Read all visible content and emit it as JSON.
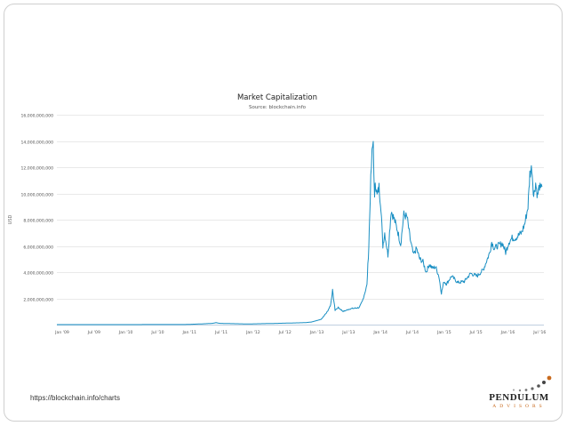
{
  "colors": {
    "line": "#1a8fc3",
    "grid": "#e2e2e2",
    "axis": "#bfcfe0",
    "accent": "#c86a1d"
  },
  "footer": {
    "source_url": "https://blockchain.info/charts",
    "brand_name": "PENDULUM",
    "brand_sub": "ADVISORS",
    "brand_icon": "pendulum-dots-logo"
  },
  "chart_data": {
    "type": "line",
    "title": "Market Capitalization",
    "subtitle": "Source: blockchain.info",
    "xlabel": "",
    "ylabel": "USD",
    "ylim": [
      0,
      16000000000
    ],
    "grid": true,
    "y_ticks": [
      {
        "value": 2000000000,
        "label": "2,000,000,000"
      },
      {
        "value": 4000000000,
        "label": "4,000,000,000"
      },
      {
        "value": 6000000000,
        "label": "6,000,000,000"
      },
      {
        "value": 8000000000,
        "label": "8,000,000,000"
      },
      {
        "value": 10000000000,
        "label": "10,000,000,000"
      },
      {
        "value": 12000000000,
        "label": "12,000,000,000"
      },
      {
        "value": 14000000000,
        "label": "14,000,000,000"
      },
      {
        "value": 16000000000,
        "label": "16,000,000,000"
      }
    ],
    "x_ticks": [
      {
        "value": 0,
        "label": "Jan '09"
      },
      {
        "value": 0.5,
        "label": "Jul '09"
      },
      {
        "value": 1,
        "label": "Jan '10"
      },
      {
        "value": 1.5,
        "label": "Jul '10"
      },
      {
        "value": 2,
        "label": "Jan '11"
      },
      {
        "value": 2.5,
        "label": "Jul '11"
      },
      {
        "value": 3,
        "label": "Jan '12"
      },
      {
        "value": 3.5,
        "label": "Jul '12"
      },
      {
        "value": 4,
        "label": "Jan '13"
      },
      {
        "value": 4.5,
        "label": "Jul '13"
      },
      {
        "value": 5,
        "label": "Jan '14"
      },
      {
        "value": 5.5,
        "label": "Jul '14"
      },
      {
        "value": 6,
        "label": "Jan '15"
      },
      {
        "value": 6.5,
        "label": "Jul '15"
      },
      {
        "value": 7,
        "label": "Jan '16"
      },
      {
        "value": 7.5,
        "label": "Jul '16"
      }
    ],
    "xlim": [
      0,
      7.65
    ],
    "series": [
      {
        "name": "Market Capitalization (USD)",
        "x_unit": "years since Jan 2009",
        "x": [
          0,
          1.0,
          1.5,
          2.0,
          2.3,
          2.45,
          2.5,
          2.55,
          2.7,
          3.0,
          3.5,
          3.9,
          4.0,
          4.15,
          4.25,
          4.3,
          4.33,
          4.37,
          4.42,
          4.5,
          4.6,
          4.75,
          4.8,
          4.87,
          4.9,
          4.93,
          4.95,
          4.97,
          4.99,
          5.0,
          5.03,
          5.06,
          5.09,
          5.12,
          5.15,
          5.2,
          5.25,
          5.3,
          5.35,
          5.4,
          5.45,
          5.5,
          5.55,
          5.6,
          5.65,
          5.7,
          5.75,
          5.8,
          5.85,
          5.9,
          5.95,
          6.0,
          6.04,
          6.08,
          6.12,
          6.2,
          6.3,
          6.4,
          6.5,
          6.6,
          6.7,
          6.8,
          6.83,
          6.87,
          6.92,
          7.0,
          7.05,
          7.1,
          7.15,
          7.2,
          7.3,
          7.35,
          7.4,
          7.43,
          7.46,
          7.49,
          7.52,
          7.55,
          7.58,
          7.6,
          7.62
        ],
        "values": [
          0,
          0,
          5000000,
          5000000,
          60000000,
          100000000,
          150000000,
          100000000,
          80000000,
          50000000,
          100000000,
          150000000,
          200000000,
          400000000,
          1000000000,
          1500000000,
          2600000000,
          1100000000,
          1300000000,
          1000000000,
          1200000000,
          1300000000,
          1800000000,
          3000000000,
          6000000000,
          11000000000,
          13000000000,
          14000000000,
          9500000000,
          11000000000,
          9800000000,
          10500000000,
          9000000000,
          6000000000,
          7000000000,
          5300000000,
          8700000000,
          8000000000,
          7200000000,
          6100000000,
          8400000000,
          8200000000,
          6500000000,
          5300000000,
          5800000000,
          5000000000,
          4800000000,
          4000000000,
          4600000000,
          4300000000,
          4400000000,
          3700000000,
          2400000000,
          3300000000,
          3100000000,
          3700000000,
          3200000000,
          3300000000,
          3900000000,
          3700000000,
          4200000000,
          5500000000,
          6300000000,
          5800000000,
          6000000000,
          6200000000,
          5500000000,
          6300000000,
          6600000000,
          6600000000,
          7000000000,
          7700000000,
          9000000000,
          11500000000,
          12000000000,
          9800000000,
          10800000000,
          9800000000,
          10600000000,
          10200000000,
          10500000000
        ]
      }
    ]
  }
}
